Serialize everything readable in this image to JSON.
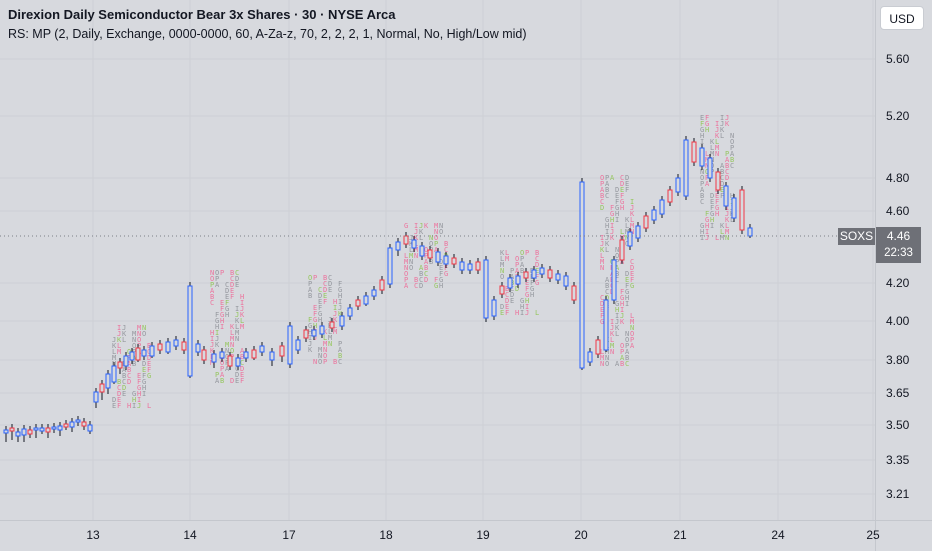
{
  "header": {
    "title": "Direxion Daily Semiconductor Bear 3x Shares · 30 · NYSE Arca",
    "indicator": "RS: MP (2, Daily, Exchange, 0000-0000, 60, A-Za-z, 70, 2, 2, 2, 1, Normal, No, High/Low mid)"
  },
  "toolbar": {
    "currency_label": "USD"
  },
  "price_axis": {
    "labels": [
      "5.60",
      "5.20",
      "4.80",
      "4.60",
      "4.20",
      "4.00",
      "3.80",
      "3.65",
      "3.50",
      "3.35",
      "3.21"
    ]
  },
  "time_axis": {
    "labels": [
      "13",
      "14",
      "17",
      "18",
      "19",
      "20",
      "21",
      "24",
      "25"
    ]
  },
  "last_price": {
    "symbol": "SOXS",
    "value": "4.46",
    "countdown": "22:33"
  },
  "colors": {
    "up": "#2962ff",
    "down": "#f23645",
    "wick": "#131722",
    "profile_gray": "#8a8d94",
    "profile_pink": "#f06292",
    "profile_green": "#8bc34a",
    "background": "#d7d9de"
  }
}
